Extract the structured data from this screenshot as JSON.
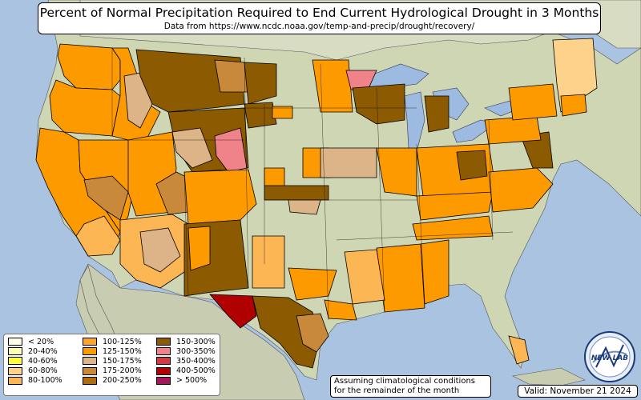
{
  "title": "Percent of Normal Precipitation Required to End Current Hydrological Drought in 3 Months",
  "subtitle": "Data from https://www.ncdc.noaa.gov/temp-and-precip/drought/recovery/",
  "legend": [
    {
      "label": "< 20%",
      "color": "#ffffe5"
    },
    {
      "label": "20-40%",
      "color": "#ffffb2"
    },
    {
      "label": "40-60%",
      "color": "#ffff33"
    },
    {
      "label": "60-80%",
      "color": "#fed28a"
    },
    {
      "label": "80-100%",
      "color": "#fdb654"
    },
    {
      "label": "100-125%",
      "color": "#fea429"
    },
    {
      "label": "125-150%",
      "color": "#fd9a00"
    },
    {
      "label": "150-175%",
      "color": "#ddb487"
    },
    {
      "label": "175-200%",
      "color": "#c88a3a"
    },
    {
      "label": "200-250%",
      "color": "#b06d10"
    },
    {
      "label": "150-300%",
      "color": "#8c5a00"
    },
    {
      "label": "300-350%",
      "color": "#f0828a"
    },
    {
      "label": "350-400%",
      "color": "#d43842"
    },
    {
      "label": "400-500%",
      "color": "#b00000"
    },
    {
      "label": "> 500%",
      "color": "#a3185a"
    }
  ],
  "note_line1": "Assuming climatological conditions",
  "note_line2": "for the remainder of the month",
  "valid": "Valid: November 21 2024",
  "logo_text": "NEW LAB",
  "colors": {
    "ocean": "#a9c3e0",
    "land": "#cfd6b3",
    "water": "#9dbbe0",
    "border": "#000000"
  }
}
